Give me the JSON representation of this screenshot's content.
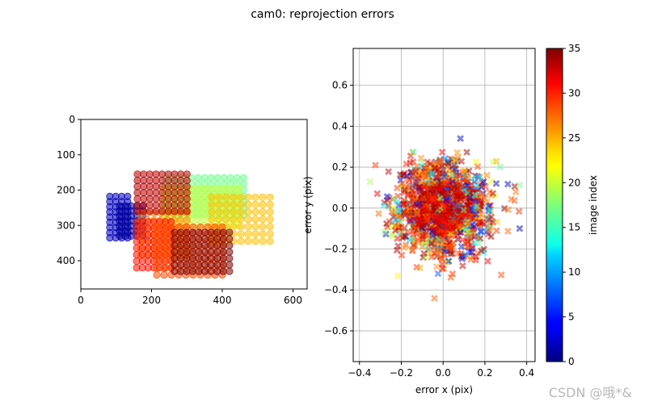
{
  "figure": {
    "title": "cam0: reprojection errors",
    "watermark": "CSDN @哦*&"
  },
  "chart_data": [
    {
      "name": "image_points",
      "type": "scatter",
      "xlim": [
        0,
        640
      ],
      "ylim": [
        480,
        0
      ],
      "xticks": [
        0,
        200,
        400,
        600
      ],
      "yticks": [
        0,
        100,
        200,
        300,
        400
      ],
      "xlabel": "",
      "ylabel": "",
      "marker": "circle",
      "grids": [
        {
          "image_index": 2,
          "x_range": [
            82,
            132
          ],
          "y_range": [
            218,
            335
          ],
          "nx": 4,
          "ny": 9
        },
        {
          "image_index": 1,
          "x_range": [
            110,
            175
          ],
          "y_range": [
            245,
            330
          ],
          "nx": 5,
          "ny": 7
        },
        {
          "image_index": 17,
          "x_range": [
            240,
            460
          ],
          "y_range": [
            165,
            270
          ],
          "nx": 13,
          "ny": 7
        },
        {
          "image_index": 20,
          "x_range": [
            235,
            445
          ],
          "y_range": [
            195,
            300
          ],
          "nx": 12,
          "ny": 7
        },
        {
          "image_index": 24,
          "x_range": [
            370,
            535
          ],
          "y_range": [
            220,
            345
          ],
          "nx": 9,
          "ny": 7
        },
        {
          "image_index": 26,
          "x_range": [
            170,
            300
          ],
          "y_range": [
            265,
            385
          ],
          "nx": 8,
          "ny": 7
        },
        {
          "image_index": 33,
          "x_range": [
            160,
            300
          ],
          "y_range": [
            155,
            260
          ],
          "nx": 9,
          "ny": 7
        },
        {
          "image_index": 30,
          "x_range": [
            158,
            255
          ],
          "y_range": [
            290,
            420
          ],
          "nx": 7,
          "ny": 8
        },
        {
          "image_index": 28,
          "x_range": [
            215,
            400
          ],
          "y_range": [
            305,
            440
          ],
          "nx": 10,
          "ny": 8
        },
        {
          "image_index": 35,
          "x_range": [
            265,
            420
          ],
          "y_range": [
            320,
            430
          ],
          "nx": 10,
          "ny": 7
        }
      ]
    },
    {
      "name": "reprojection_errors",
      "type": "scatter",
      "xlim": [
        -0.43,
        0.44
      ],
      "ylim": [
        -0.75,
        0.78
      ],
      "xticks": [
        -0.4,
        -0.2,
        0.0,
        0.2,
        0.4
      ],
      "yticks": [
        -0.6,
        -0.4,
        -0.2,
        0.0,
        0.2,
        0.4,
        0.6
      ],
      "xlabel": "error x (pix)",
      "ylabel": "error y (pix)",
      "grid": true,
      "marker": "x",
      "distribution": {
        "center": [
          0.0,
          0.0
        ],
        "std_x": 0.11,
        "std_y": 0.11,
        "count": 1400
      },
      "colorbar": {
        "label": "image index",
        "range": [
          0,
          35
        ],
        "ticks": [
          0,
          5,
          10,
          15,
          20,
          25,
          30,
          35
        ],
        "colormap": "jet"
      }
    }
  ]
}
